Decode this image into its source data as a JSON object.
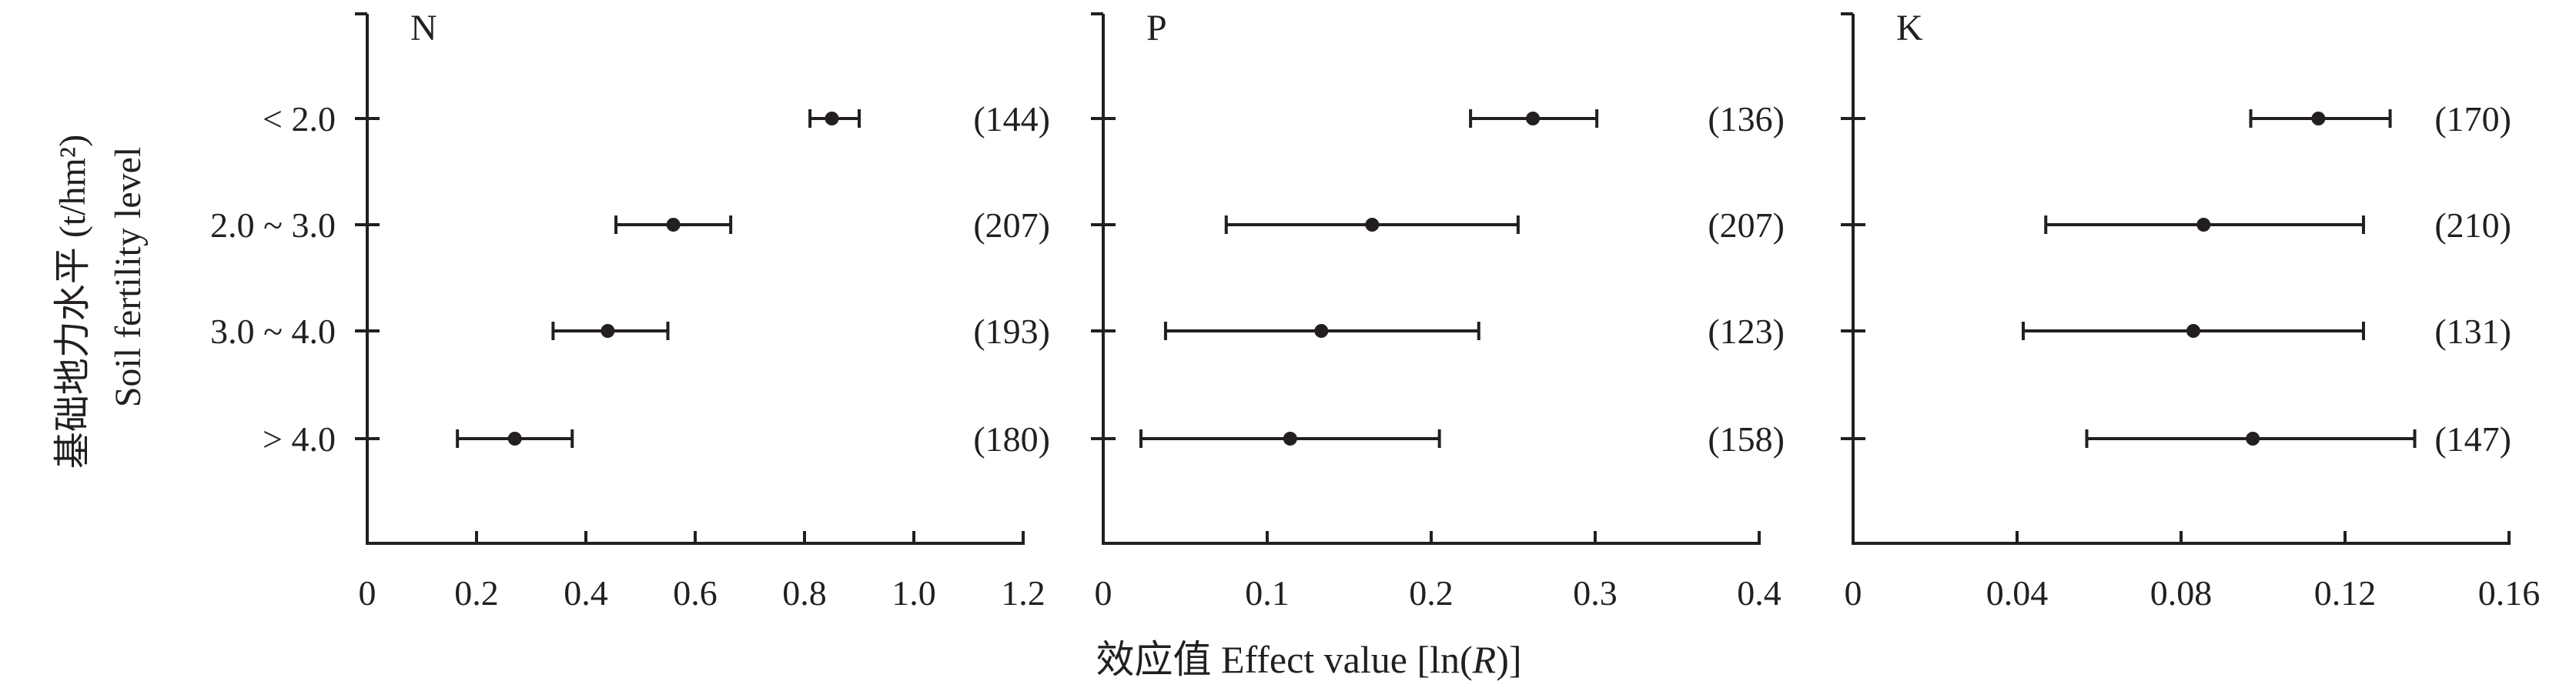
{
  "chart_data": [
    {
      "type": "scatter",
      "title": "N",
      "xlim": [
        0,
        1.2
      ],
      "xticks": [
        "0",
        "0.2",
        "0.4",
        "0.6",
        "0.8",
        "1.0",
        "1.2"
      ],
      "categories": [
        "< 2.0",
        "2.0 ~ 3.0",
        "3.0 ~ 4.0",
        "> 4.0"
      ],
      "points": [
        {
          "value": 0.85,
          "ci": [
            0.81,
            0.9
          ],
          "n": "(144)"
        },
        {
          "value": 0.56,
          "ci": [
            0.455,
            0.665
          ],
          "n": "(207)"
        },
        {
          "value": 0.44,
          "ci": [
            0.34,
            0.55
          ],
          "n": "(193)"
        },
        {
          "value": 0.27,
          "ci": [
            0.165,
            0.375
          ],
          "n": "(180)"
        }
      ]
    },
    {
      "type": "scatter",
      "title": "P",
      "xlim": [
        0,
        0.4
      ],
      "xticks": [
        "0",
        "0.1",
        "0.2",
        "0.3",
        "0.4"
      ],
      "categories": [
        "< 2.0",
        "2.0 ~ 3.0",
        "3.0 ~ 4.0",
        "> 4.0"
      ],
      "points": [
        {
          "value": 0.262,
          "ci": [
            0.224,
            0.301
          ],
          "n": "(136)"
        },
        {
          "value": 0.164,
          "ci": [
            0.075,
            0.253
          ],
          "n": "(207)"
        },
        {
          "value": 0.133,
          "ci": [
            0.038,
            0.229
          ],
          "n": "(123)"
        },
        {
          "value": 0.114,
          "ci": [
            0.023,
            0.205
          ],
          "n": "(158)"
        }
      ]
    },
    {
      "type": "scatter",
      "title": "K",
      "xlim": [
        0,
        0.16
      ],
      "xticks": [
        "0",
        "0.04",
        "0.08",
        "0.12",
        "0.16"
      ],
      "categories": [
        "< 2.0",
        "2.0 ~ 3.0",
        "3.0 ~ 4.0",
        "> 4.0"
      ],
      "points": [
        {
          "value": 0.1135,
          "ci": [
            0.097,
            0.131
          ],
          "n": "(170)"
        },
        {
          "value": 0.0855,
          "ci": [
            0.047,
            0.1245
          ],
          "n": "(210)"
        },
        {
          "value": 0.083,
          "ci": [
            0.0415,
            0.1245
          ],
          "n": "(131)"
        },
        {
          "value": 0.0975,
          "ci": [
            0.057,
            0.137
          ],
          "n": "(147)"
        }
      ]
    }
  ],
  "labels": {
    "ylabel_cn": "基础地力水平 (t/hm²)",
    "ylabel_en": "Soil fertility level",
    "xlabel_prefix": "效应值 Effect value [ln(",
    "xlabel_italic": "R",
    "xlabel_suffix": ")]"
  }
}
